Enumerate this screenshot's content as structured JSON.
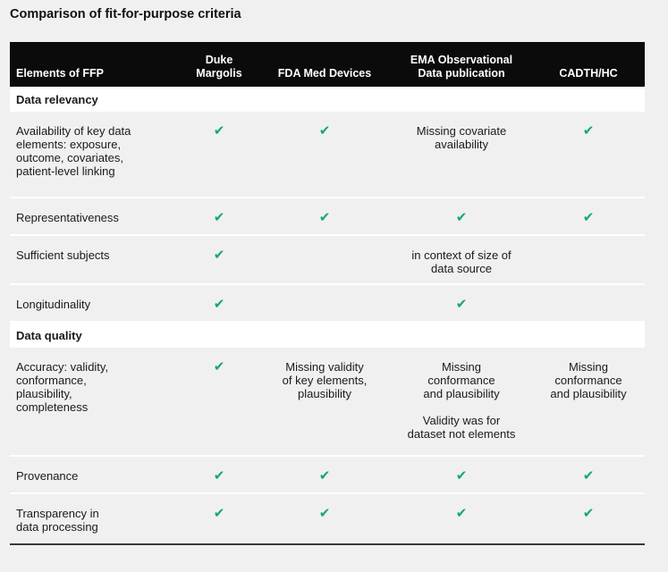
{
  "title": "Comparison of fit-for-purpose criteria",
  "columns": [
    {
      "line1": "Elements of FFP",
      "line2": ""
    },
    {
      "line1": "Duke",
      "line2": "Margolis"
    },
    {
      "line1": "FDA Med Devices",
      "line2": ""
    },
    {
      "line1": "EMA Observational",
      "line2": "Data publication"
    },
    {
      "line1": "CADTH/HC",
      "line2": ""
    }
  ],
  "check_symbol": "✔",
  "check_color": "#14a86d",
  "sections": [
    {
      "name": "Data relevancy",
      "rows": [
        {
          "label": [
            "Availability of key data",
            "elements: exposure,",
            "outcome, covariates,",
            "patient-level linking"
          ],
          "cells": [
            [
              "✔"
            ],
            [
              "✔"
            ],
            [
              "Missing covariate",
              "availability"
            ],
            [
              "✔"
            ]
          ]
        },
        {
          "label": [
            "Representativeness"
          ],
          "cells": [
            [
              "✔"
            ],
            [
              "✔"
            ],
            [
              "✔"
            ],
            [
              "✔"
            ]
          ]
        },
        {
          "label": [
            "Sufficient subjects"
          ],
          "cells": [
            [
              "✔"
            ],
            [],
            [
              "in context of size of",
              "data source"
            ],
            []
          ]
        },
        {
          "label": [
            "Longitudinality"
          ],
          "cells": [
            [
              "✔"
            ],
            [],
            [
              "✔"
            ],
            []
          ]
        }
      ]
    },
    {
      "name": "Data quality",
      "rows": [
        {
          "label": [
            "Accuracy: validity,",
            "conformance,",
            "plausibility,",
            "completeness"
          ],
          "cells": [
            [
              "✔"
            ],
            [
              "Missing validity",
              "of key elements,",
              "plausibility"
            ],
            [
              "Missing",
              "conformance",
              "and plausibility",
              "",
              "Validity was for",
              "dataset not elements"
            ],
            [
              "Missing",
              "conformance",
              "and plausibility"
            ]
          ]
        },
        {
          "label": [
            "Provenance"
          ],
          "cells": [
            [
              "✔"
            ],
            [
              "✔"
            ],
            [
              "✔"
            ],
            [
              "✔"
            ]
          ]
        },
        {
          "label": [
            "Transparency in",
            "data processing"
          ],
          "cells": [
            [
              "✔"
            ],
            [
              "✔"
            ],
            [
              "✔"
            ],
            [
              "✔"
            ]
          ]
        }
      ]
    }
  ]
}
